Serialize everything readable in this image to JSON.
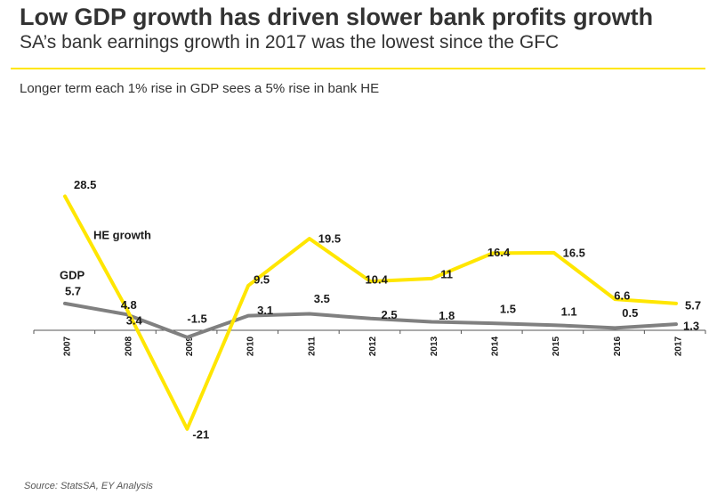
{
  "header": {
    "title": "Low GDP growth has driven slower bank profits growth",
    "subtitle": "SA’s bank earnings growth in 2017 was the lowest since the GFC"
  },
  "chart_subtitle": "Longer term each 1% rise in GDP sees a 5% rise in bank HE",
  "source": "Source: StatsSA, EY Analysis",
  "colors": {
    "accent": "#ffe600",
    "he_line": "#ffe600",
    "gdp_line": "#808080",
    "text": "#333333"
  },
  "chart_data": {
    "type": "line",
    "x": [
      "2007",
      "2008",
      "2009",
      "2010",
      "2011",
      "2012",
      "2013",
      "2014",
      "2015",
      "2016",
      "2017"
    ],
    "series": [
      {
        "name": "HE growth",
        "values": [
          28.5,
          4.8,
          -21,
          9.5,
          19.5,
          10.4,
          11,
          16.4,
          16.5,
          6.6,
          5.7
        ],
        "labels": [
          "28.5",
          "4.8",
          "-21",
          "9.5",
          "19.5",
          "10.4",
          "11",
          "16.4",
          "16.5",
          "6.6",
          "5.7"
        ]
      },
      {
        "name": "GDP",
        "values": [
          5.7,
          3.4,
          -1.5,
          3.1,
          3.5,
          2.5,
          1.8,
          1.5,
          1.1,
          0.5,
          1.3
        ],
        "labels": [
          "5.7",
          "3.4",
          "-1.5",
          "3.1",
          "3.5",
          "2.5",
          "1.8",
          "1.5",
          "1.1",
          "0.5",
          "1.3"
        ]
      }
    ],
    "xlabel": "",
    "ylabel": "",
    "ylim": [
      -22,
      30
    ],
    "grid": false,
    "legend": "inline labels"
  }
}
